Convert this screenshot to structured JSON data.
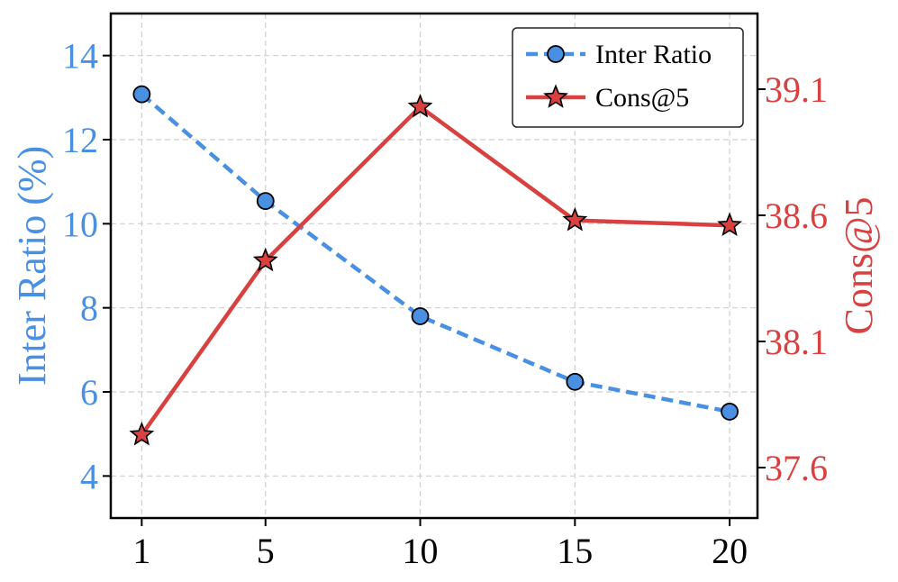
{
  "chart_data": {
    "type": "line",
    "x": [
      1,
      5,
      10,
      15,
      20
    ],
    "xticks": [
      "1",
      "5",
      "10",
      "15",
      "20"
    ],
    "xlim": [
      0,
      20.9
    ],
    "left_axis": {
      "label": "Inter Ratio (%)",
      "ylim": [
        3,
        15
      ],
      "ticks": [
        "4",
        "6",
        "8",
        "10",
        "12",
        "14"
      ],
      "tick_values": [
        4,
        6,
        8,
        10,
        12,
        14
      ],
      "color": "#4a90e2"
    },
    "right_axis": {
      "label": "Cons@5",
      "ylim": [
        37.4,
        39.4
      ],
      "ticks": [
        "37.6",
        "38.1",
        "38.6",
        "39.1"
      ],
      "tick_values": [
        37.6,
        38.1,
        38.6,
        39.1
      ],
      "color": "#d94040"
    },
    "series": [
      {
        "name": "Inter Ratio",
        "axis": "left",
        "values": [
          13.08,
          10.54,
          7.8,
          6.24,
          5.53
        ],
        "color": "#4a90e2",
        "style": "dashed",
        "marker": "circle"
      },
      {
        "name": "Cons@5",
        "axis": "right",
        "values": [
          37.73,
          38.42,
          39.03,
          38.58,
          38.56
        ],
        "color": "#d94040",
        "style": "solid",
        "marker": "star"
      }
    ],
    "legend": {
      "position": "top-right",
      "entries": [
        "Inter Ratio",
        "Cons@5"
      ]
    },
    "grid": true
  }
}
